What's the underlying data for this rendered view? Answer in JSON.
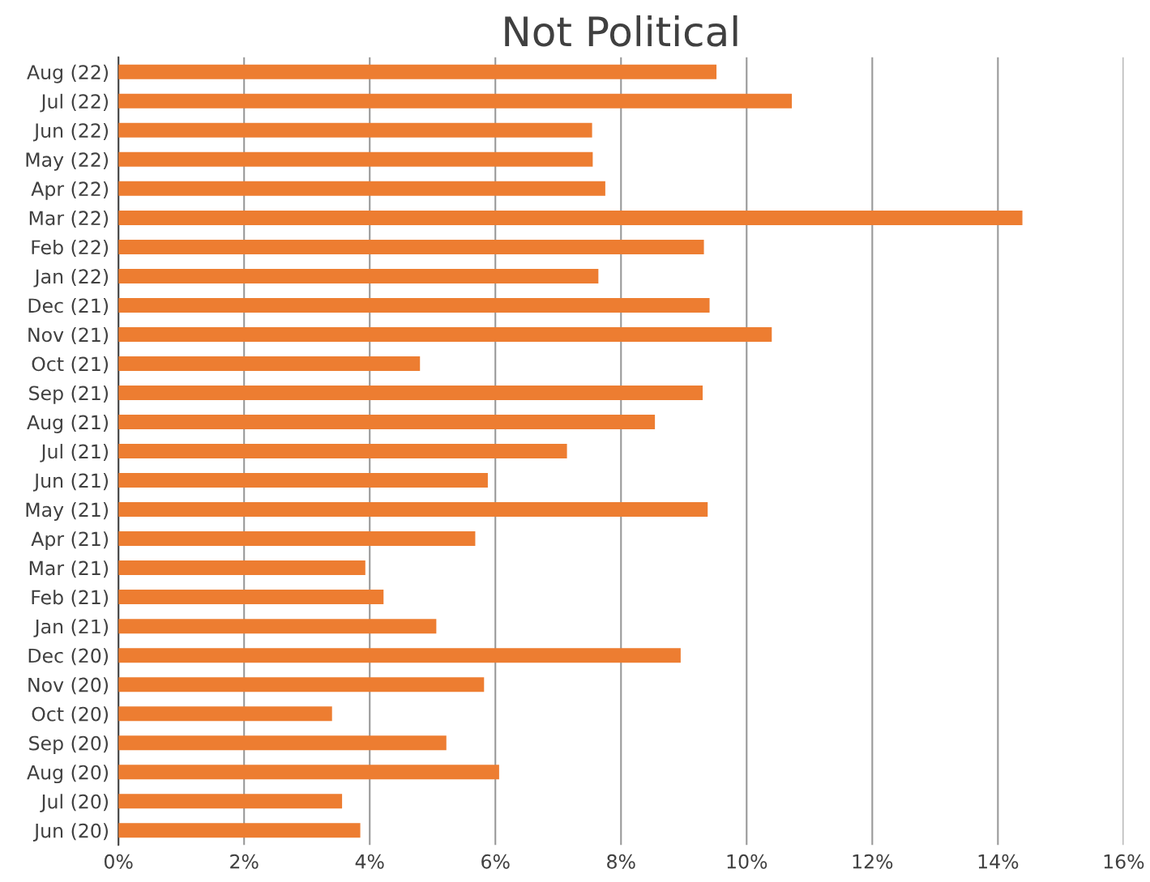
{
  "chart_data": {
    "type": "bar",
    "orientation": "horizontal",
    "title": "Not Political",
    "categories": [
      "Aug (22)",
      "Jul (22)",
      "Jun (22)",
      "May (22)",
      "Apr (22)",
      "Mar (22)",
      "Feb (22)",
      "Jan (22)",
      "Dec (21)",
      "Nov (21)",
      "Oct (21)",
      "Sep (21)",
      "Aug (21)",
      "Jul (21)",
      "Jun (21)",
      "May (21)",
      "Apr (21)",
      "Mar (21)",
      "Feb (21)",
      "Jan (21)",
      "Dec (20)",
      "Nov (20)",
      "Oct (20)",
      "Sep (20)",
      "Aug (20)",
      "Jul (20)",
      "Jun (20)"
    ],
    "values": [
      9.52,
      10.72,
      7.54,
      7.55,
      7.75,
      14.39,
      9.32,
      7.64,
      9.41,
      10.4,
      4.8,
      9.3,
      8.54,
      7.14,
      5.88,
      9.38,
      5.68,
      3.93,
      4.22,
      5.06,
      8.95,
      5.82,
      3.4,
      5.22,
      6.06,
      3.56,
      3.85
    ],
    "color": "#ed7d31",
    "xlim": [
      0,
      16
    ],
    "xticks": [
      {
        "value": 0,
        "label": "0%"
      },
      {
        "value": 2,
        "label": "2%"
      },
      {
        "value": 4,
        "label": "4%"
      },
      {
        "value": 6,
        "label": "6%"
      },
      {
        "value": 8,
        "label": "8%"
      },
      {
        "value": 10,
        "label": "10%"
      },
      {
        "value": 12,
        "label": "12%"
      },
      {
        "value": 14,
        "label": "14%"
      },
      {
        "value": 16,
        "label": "16%"
      }
    ],
    "grid": "x",
    "legend": false
  }
}
